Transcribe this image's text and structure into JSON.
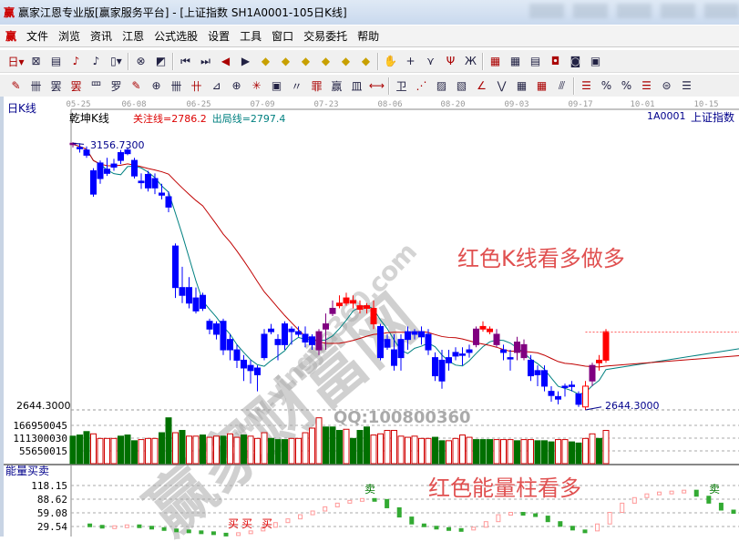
{
  "window": {
    "logo": "赢",
    "title": "赢家江恩专业版[赢家服务平台] - [上证指数  SH1A0001-105日K线]"
  },
  "menu": {
    "logo": "赢",
    "items": [
      "文件",
      "浏览",
      "资讯",
      "江恩",
      "公式选股",
      "设置",
      "工具",
      "窗口",
      "交易委托",
      "帮助"
    ]
  },
  "toolbar1": {
    "icons": [
      "日▾",
      "⊠",
      "▤",
      "♪",
      "♪",
      "▯▾",
      "|",
      "⊗",
      "◩",
      "|",
      "⏮",
      "⏭",
      "◀",
      "▶",
      "◆",
      "◆",
      "◆",
      "◆",
      "◆",
      "◆",
      "|",
      "✋",
      "+",
      "⋎",
      "Ψ",
      "Ж",
      "|",
      "▦",
      "▦",
      "▤",
      "◘",
      "◙",
      "▣"
    ]
  },
  "toolbar2": {
    "icons": [
      "✎",
      "卌",
      "罢",
      "罢",
      "罒",
      "罗",
      "✎",
      "⊕",
      "卌",
      "卄",
      "⊿",
      "⊕",
      "✳",
      "▣",
      "〃",
      "罪",
      "赢",
      "皿",
      "⟷",
      "|",
      "卫",
      "⋰",
      "▨",
      "▧",
      "∠",
      "⋁",
      "▦",
      "▦",
      "⫻",
      "|",
      "☰",
      "%",
      "%",
      "☰",
      "⊜",
      "☰"
    ]
  },
  "chart": {
    "period_label": "日K线",
    "indicator_name": "乾坤K线",
    "focus_line": "关注线=2786.2",
    "exit_line": "出局线=2797.4",
    "code": "1A0001",
    "name": "上证指数",
    "dates": [
      "05-25",
      "06-08",
      "06-25",
      "07-09",
      "07-23",
      "08-06",
      "08-20",
      "09-03",
      "09-17",
      "10-01",
      "10-15"
    ],
    "high_label": "3156.7300",
    "low_label": "2644.3000",
    "axis_price": "2644.3000",
    "colors": {
      "up": "#ff0000",
      "down": "#0000ff",
      "transition": "#800080",
      "ma_short": "#008080",
      "ma_long": "#c00000",
      "vol_down": "#007000",
      "vol_up": "#d00000"
    },
    "candles": [
      [
        3158,
        3160,
        3150,
        3156,
        "p"
      ],
      [
        3150,
        3158,
        3140,
        3148,
        "b"
      ],
      [
        3145,
        3152,
        3130,
        3135,
        "b"
      ],
      [
        3105,
        3110,
        3055,
        3060,
        "b"
      ],
      [
        3120,
        3125,
        3080,
        3090,
        "b"
      ],
      [
        3108,
        3130,
        3095,
        3100,
        "b"
      ],
      [
        3118,
        3128,
        3105,
        3112,
        "b"
      ],
      [
        3140,
        3145,
        3118,
        3125,
        "b"
      ],
      [
        3145,
        3150,
        3135,
        3138,
        "b"
      ],
      [
        3125,
        3130,
        3090,
        3095,
        "b"
      ],
      [
        3085,
        3100,
        3070,
        3082,
        "b"
      ],
      [
        3098,
        3105,
        3065,
        3072,
        "b"
      ],
      [
        3090,
        3100,
        3060,
        3072,
        "b"
      ],
      [
        3062,
        3080,
        3050,
        3058,
        "b"
      ],
      [
        3055,
        3065,
        3025,
        3035,
        "b"
      ],
      [
        2960,
        2965,
        2860,
        2880,
        "b"
      ],
      [
        2880,
        2920,
        2850,
        2865,
        "b"
      ],
      [
        2880,
        2900,
        2840,
        2850,
        "b"
      ],
      [
        2860,
        2880,
        2830,
        2835,
        "b"
      ],
      [
        2865,
        2870,
        2835,
        2840,
        "b"
      ],
      [
        2815,
        2820,
        2790,
        2800,
        "b"
      ],
      [
        2810,
        2815,
        2780,
        2790,
        "b"
      ],
      [
        2815,
        2820,
        2750,
        2760,
        "b"
      ],
      [
        2780,
        2790,
        2740,
        2760,
        "b"
      ],
      [
        2760,
        2770,
        2725,
        2740,
        "b"
      ],
      [
        2740,
        2750,
        2700,
        2725,
        "b"
      ],
      [
        2730,
        2740,
        2695,
        2720,
        "b"
      ],
      [
        2725,
        2730,
        2680,
        2712,
        "b"
      ],
      [
        2790,
        2800,
        2740,
        2745,
        "b"
      ],
      [
        2800,
        2810,
        2790,
        2795,
        "b"
      ],
      [
        2780,
        2790,
        2740,
        2770,
        "b"
      ],
      [
        2810,
        2815,
        2760,
        2770,
        "b"
      ],
      [
        2800,
        2805,
        2770,
        2795,
        "b"
      ],
      [
        2795,
        2805,
        2785,
        2790,
        "b"
      ],
      [
        2790,
        2805,
        2765,
        2775,
        "b"
      ],
      [
        2785,
        2790,
        2760,
        2770,
        "b"
      ],
      [
        2795,
        2800,
        2750,
        2760,
        "p"
      ],
      [
        2810,
        2830,
        2760,
        2800,
        "p"
      ],
      [
        2840,
        2855,
        2825,
        2830,
        "p"
      ],
      [
        2850,
        2865,
        2840,
        2845,
        "r"
      ],
      [
        2860,
        2870,
        2845,
        2850,
        "r"
      ],
      [
        2855,
        2865,
        2840,
        2850,
        "r"
      ],
      [
        2845,
        2855,
        2830,
        2838,
        "r"
      ],
      [
        2840,
        2850,
        2830,
        2845,
        "r"
      ],
      [
        2840,
        2855,
        2800,
        2810,
        "r"
      ],
      [
        2805,
        2810,
        2740,
        2745,
        "b"
      ],
      [
        2780,
        2790,
        2760,
        2765,
        "b"
      ],
      [
        2760,
        2790,
        2720,
        2730,
        "b"
      ],
      [
        2780,
        2790,
        2720,
        2745,
        "b"
      ],
      [
        2795,
        2805,
        2760,
        2780,
        "b"
      ],
      [
        2790,
        2800,
        2780,
        2795,
        "b"
      ],
      [
        2795,
        2805,
        2770,
        2785,
        "b"
      ],
      [
        2790,
        2800,
        2750,
        2760,
        "b"
      ],
      [
        2745,
        2755,
        2700,
        2710,
        "b"
      ],
      [
        2740,
        2760,
        2685,
        2700,
        "b"
      ],
      [
        2745,
        2760,
        2720,
        2735,
        "b"
      ],
      [
        2755,
        2765,
        2740,
        2748,
        "b"
      ],
      [
        2750,
        2765,
        2730,
        2752,
        "b"
      ],
      [
        2755,
        2770,
        2745,
        2760,
        "b"
      ],
      [
        2800,
        2805,
        2765,
        2770,
        "p"
      ],
      [
        2805,
        2815,
        2795,
        2800,
        "r"
      ],
      [
        2800,
        2805,
        2790,
        2795,
        "r"
      ],
      [
        2790,
        2800,
        2765,
        2770,
        "p"
      ],
      [
        2760,
        2770,
        2740,
        2755,
        "b"
      ],
      [
        2745,
        2760,
        2720,
        2745,
        "b"
      ],
      [
        2775,
        2785,
        2740,
        2755,
        "p"
      ],
      [
        2770,
        2780,
        2740,
        2745,
        "p"
      ],
      [
        2740,
        2750,
        2700,
        2710,
        "b"
      ],
      [
        2720,
        2730,
        2690,
        2712,
        "b"
      ],
      [
        2720,
        2730,
        2680,
        2690,
        "b"
      ],
      [
        2680,
        2690,
        2660,
        2672,
        "b"
      ],
      [
        2670,
        2680,
        2655,
        2665,
        "b"
      ],
      [
        2690,
        2695,
        2670,
        2690,
        "b"
      ],
      [
        2692,
        2700,
        2680,
        2690,
        "b"
      ],
      [
        2675,
        2680,
        2650,
        2655,
        "b"
      ],
      [
        2650,
        2700,
        2644.3,
        2690,
        "h"
      ],
      [
        2700,
        2735,
        2690,
        2730,
        "p"
      ],
      [
        2735,
        2750,
        2720,
        2740,
        "r"
      ],
      [
        2740,
        2800,
        2735,
        2795,
        "r"
      ]
    ],
    "volume_axis": [
      "166950045",
      "111300030",
      "55650015"
    ],
    "volumes": [
      120000000.0,
      125000000.0,
      140000000.0,
      130000000.0,
      110000000.0,
      110000000.0,
      110000000.0,
      120000000.0,
      125000000.0,
      100000000.0,
      105000000.0,
      110000000.0,
      110000000.0,
      135000000.0,
      200000000.0,
      135000000.0,
      145000000.0,
      120000000.0,
      120000000.0,
      125000000.0,
      115000000.0,
      120000000.0,
      120000000.0,
      130000000.0,
      115000000.0,
      125000000.0,
      120000000.0,
      110000000.0,
      135000000.0,
      110000000.0,
      105000000.0,
      105000000.0,
      110000000.0,
      110000000.0,
      135000000.0,
      155000000.0,
      200000000.0,
      160000000.0,
      160000000.0,
      145000000.0,
      150000000.0,
      110000000.0,
      145000000.0,
      160000000.0,
      125000000.0,
      130000000.0,
      145000000.0,
      145000000.0,
      120000000.0,
      115000000.0,
      120000000.0,
      110000000.0,
      110000000.0,
      115000000.0,
      100000000.0,
      100000000.0,
      110000000.0,
      125000000.0,
      115000000.0,
      105000000.0,
      105000000.0,
      105000000.0,
      105000000.0,
      105000000.0,
      105000000.0,
      100000000.0,
      105000000.0,
      105000000.0,
      100000000.0,
      100000000.0,
      95000000.0,
      105000000.0,
      105000000.0,
      95000000.0,
      90000000.0,
      110000000.0,
      130000000.0,
      110000000.0,
      145000000.0
    ],
    "volume_hollow": [
      0,
      0,
      0,
      1,
      1,
      1,
      1,
      0,
      0,
      0,
      1,
      1,
      1,
      0,
      0,
      1,
      0,
      1,
      1,
      0,
      1,
      1,
      0,
      1,
      1,
      0,
      1,
      1,
      1,
      0,
      0,
      0,
      1,
      1,
      1,
      1,
      1,
      0,
      0,
      0,
      1,
      0,
      0,
      0,
      1,
      1,
      1,
      1,
      1,
      1,
      1,
      1,
      1,
      0,
      0,
      1,
      1,
      1,
      1,
      0,
      0,
      0,
      1,
      1,
      1,
      0,
      1,
      1,
      0,
      0,
      0,
      1,
      1,
      0,
      0,
      1,
      1,
      0,
      1
    ],
    "energy": {
      "name": "能量买卖",
      "axis": [
        "118.15",
        "88.62",
        "59.08",
        "29.54"
      ],
      "values": [
        35,
        32,
        30,
        31,
        33,
        30,
        27,
        24,
        22,
        20,
        18,
        15,
        14,
        16,
        20,
        28,
        38,
        46,
        55,
        63,
        72,
        80,
        86,
        90,
        88,
        70,
        50,
        35,
        30,
        27,
        25,
        22,
        28,
        40,
        55,
        60,
        57,
        52,
        40,
        30,
        22,
        20,
        35,
        60,
        80,
        92,
        100,
        104,
        106,
        108,
        95,
        80,
        65,
        58
      ],
      "buy_label": "买",
      "sell_label": "卖"
    },
    "annotations": {
      "kline_note": "红色K线看多做多",
      "volume_note": "红色能量柱看多",
      "qq": "QQ:100800360"
    },
    "watermarks": {
      "brand": "赢家财富网",
      "site": "www.yingjia360.com"
    }
  }
}
